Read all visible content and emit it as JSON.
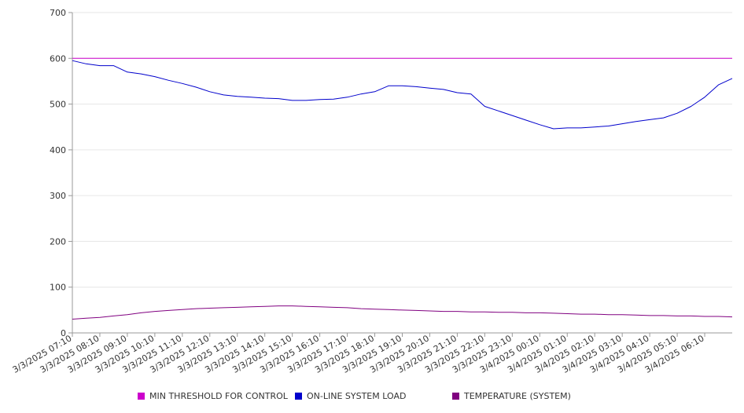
{
  "chart_data": {
    "type": "line",
    "title": "",
    "xlabel": "",
    "ylabel": "",
    "ylim": [
      0,
      700
    ],
    "y_ticks": [
      "0",
      "100",
      "200",
      "300",
      "400",
      "500",
      "600",
      "700"
    ],
    "x_tick_labels": [
      "3/3/2025 07:10",
      "3/3/2025 08:10",
      "3/3/2025 09:10",
      "3/3/2025 10:10",
      "3/3/2025 11:10",
      "3/3/2025 12:10",
      "3/3/2025 13:10",
      "3/3/2025 14:10",
      "3/3/2025 15:10",
      "3/3/2025 16:10",
      "3/3/2025 17:10",
      "3/3/2025 18:10",
      "3/3/2025 19:10",
      "3/3/2025 20:10",
      "3/3/2025 21:10",
      "3/3/2025 22:10",
      "3/3/2025 23:10",
      "3/4/2025 00:10",
      "3/4/2025 01:10",
      "3/4/2025 02:10",
      "3/4/2025 03:10",
      "3/4/2025 04:10",
      "3/4/2025 05:10",
      "3/4/2025 06:10"
    ],
    "x": [
      "3/3/2025 07:10",
      "3/3/2025 07:40",
      "3/3/2025 08:10",
      "3/3/2025 08:40",
      "3/3/2025 09:10",
      "3/3/2025 09:40",
      "3/3/2025 10:10",
      "3/3/2025 10:40",
      "3/3/2025 11:10",
      "3/3/2025 11:40",
      "3/3/2025 12:10",
      "3/3/2025 12:40",
      "3/3/2025 13:10",
      "3/3/2025 13:40",
      "3/3/2025 14:10",
      "3/3/2025 14:40",
      "3/3/2025 15:10",
      "3/3/2025 15:40",
      "3/3/2025 16:10",
      "3/3/2025 16:40",
      "3/3/2025 17:10",
      "3/3/2025 17:40",
      "3/3/2025 18:10",
      "3/3/2025 18:40",
      "3/3/2025 19:10",
      "3/3/2025 19:40",
      "3/3/2025 20:10",
      "3/3/2025 20:40",
      "3/3/2025 21:10",
      "3/3/2025 21:40",
      "3/3/2025 22:10",
      "3/3/2025 22:40",
      "3/3/2025 23:10",
      "3/3/2025 23:40",
      "3/4/2025 00:10",
      "3/4/2025 00:40",
      "3/4/2025 01:10",
      "3/4/2025 01:40",
      "3/4/2025 02:10",
      "3/4/2025 02:40",
      "3/4/2025 03:10",
      "3/4/2025 03:40",
      "3/4/2025 04:10",
      "3/4/2025 04:40",
      "3/4/2025 05:10",
      "3/4/2025 05:40",
      "3/4/2025 06:10",
      "3/4/2025 06:40",
      "3/4/2025 07:10"
    ],
    "series": [
      {
        "name": "MIN THRESHOLD FOR CONTROL",
        "color": "#cc00cc",
        "values": [
          600,
          600,
          600,
          600,
          600,
          600,
          600,
          600,
          600,
          600,
          600,
          600,
          600,
          600,
          600,
          600,
          600,
          600,
          600,
          600,
          600,
          600,
          600,
          600,
          600,
          600,
          600,
          600,
          600,
          600,
          600,
          600,
          600,
          600,
          600,
          600,
          600,
          600,
          600,
          600,
          600,
          600,
          600,
          600,
          600,
          600,
          600,
          600,
          600
        ]
      },
      {
        "name": "ON-LINE SYSTEM LOAD",
        "color": "#0000cc",
        "values": [
          595,
          588,
          584,
          584,
          570,
          566,
          560,
          552,
          545,
          537,
          527,
          520,
          517,
          515,
          513,
          512,
          508,
          508,
          510,
          511,
          515,
          522,
          527,
          540,
          540,
          538,
          535,
          532,
          525,
          522,
          495,
          485,
          475,
          465,
          455,
          446,
          448,
          448,
          450,
          452,
          457,
          462,
          466,
          470,
          480,
          495,
          515,
          542,
          556
        ]
      },
      {
        "name": "TEMPERATURE (SYSTEM)",
        "color": "#800080",
        "values": [
          30,
          32,
          34,
          37,
          40,
          44,
          47,
          49,
          51,
          53,
          54,
          55,
          56,
          57,
          58,
          59,
          59,
          58,
          57,
          56,
          55,
          53,
          52,
          51,
          50,
          49,
          48,
          47,
          47,
          46,
          46,
          45,
          45,
          44,
          44,
          43,
          42,
          41,
          41,
          40,
          40,
          39,
          38,
          38,
          37,
          37,
          36,
          36,
          35
        ]
      }
    ],
    "grid": true,
    "legend_position": "bottom-center"
  }
}
